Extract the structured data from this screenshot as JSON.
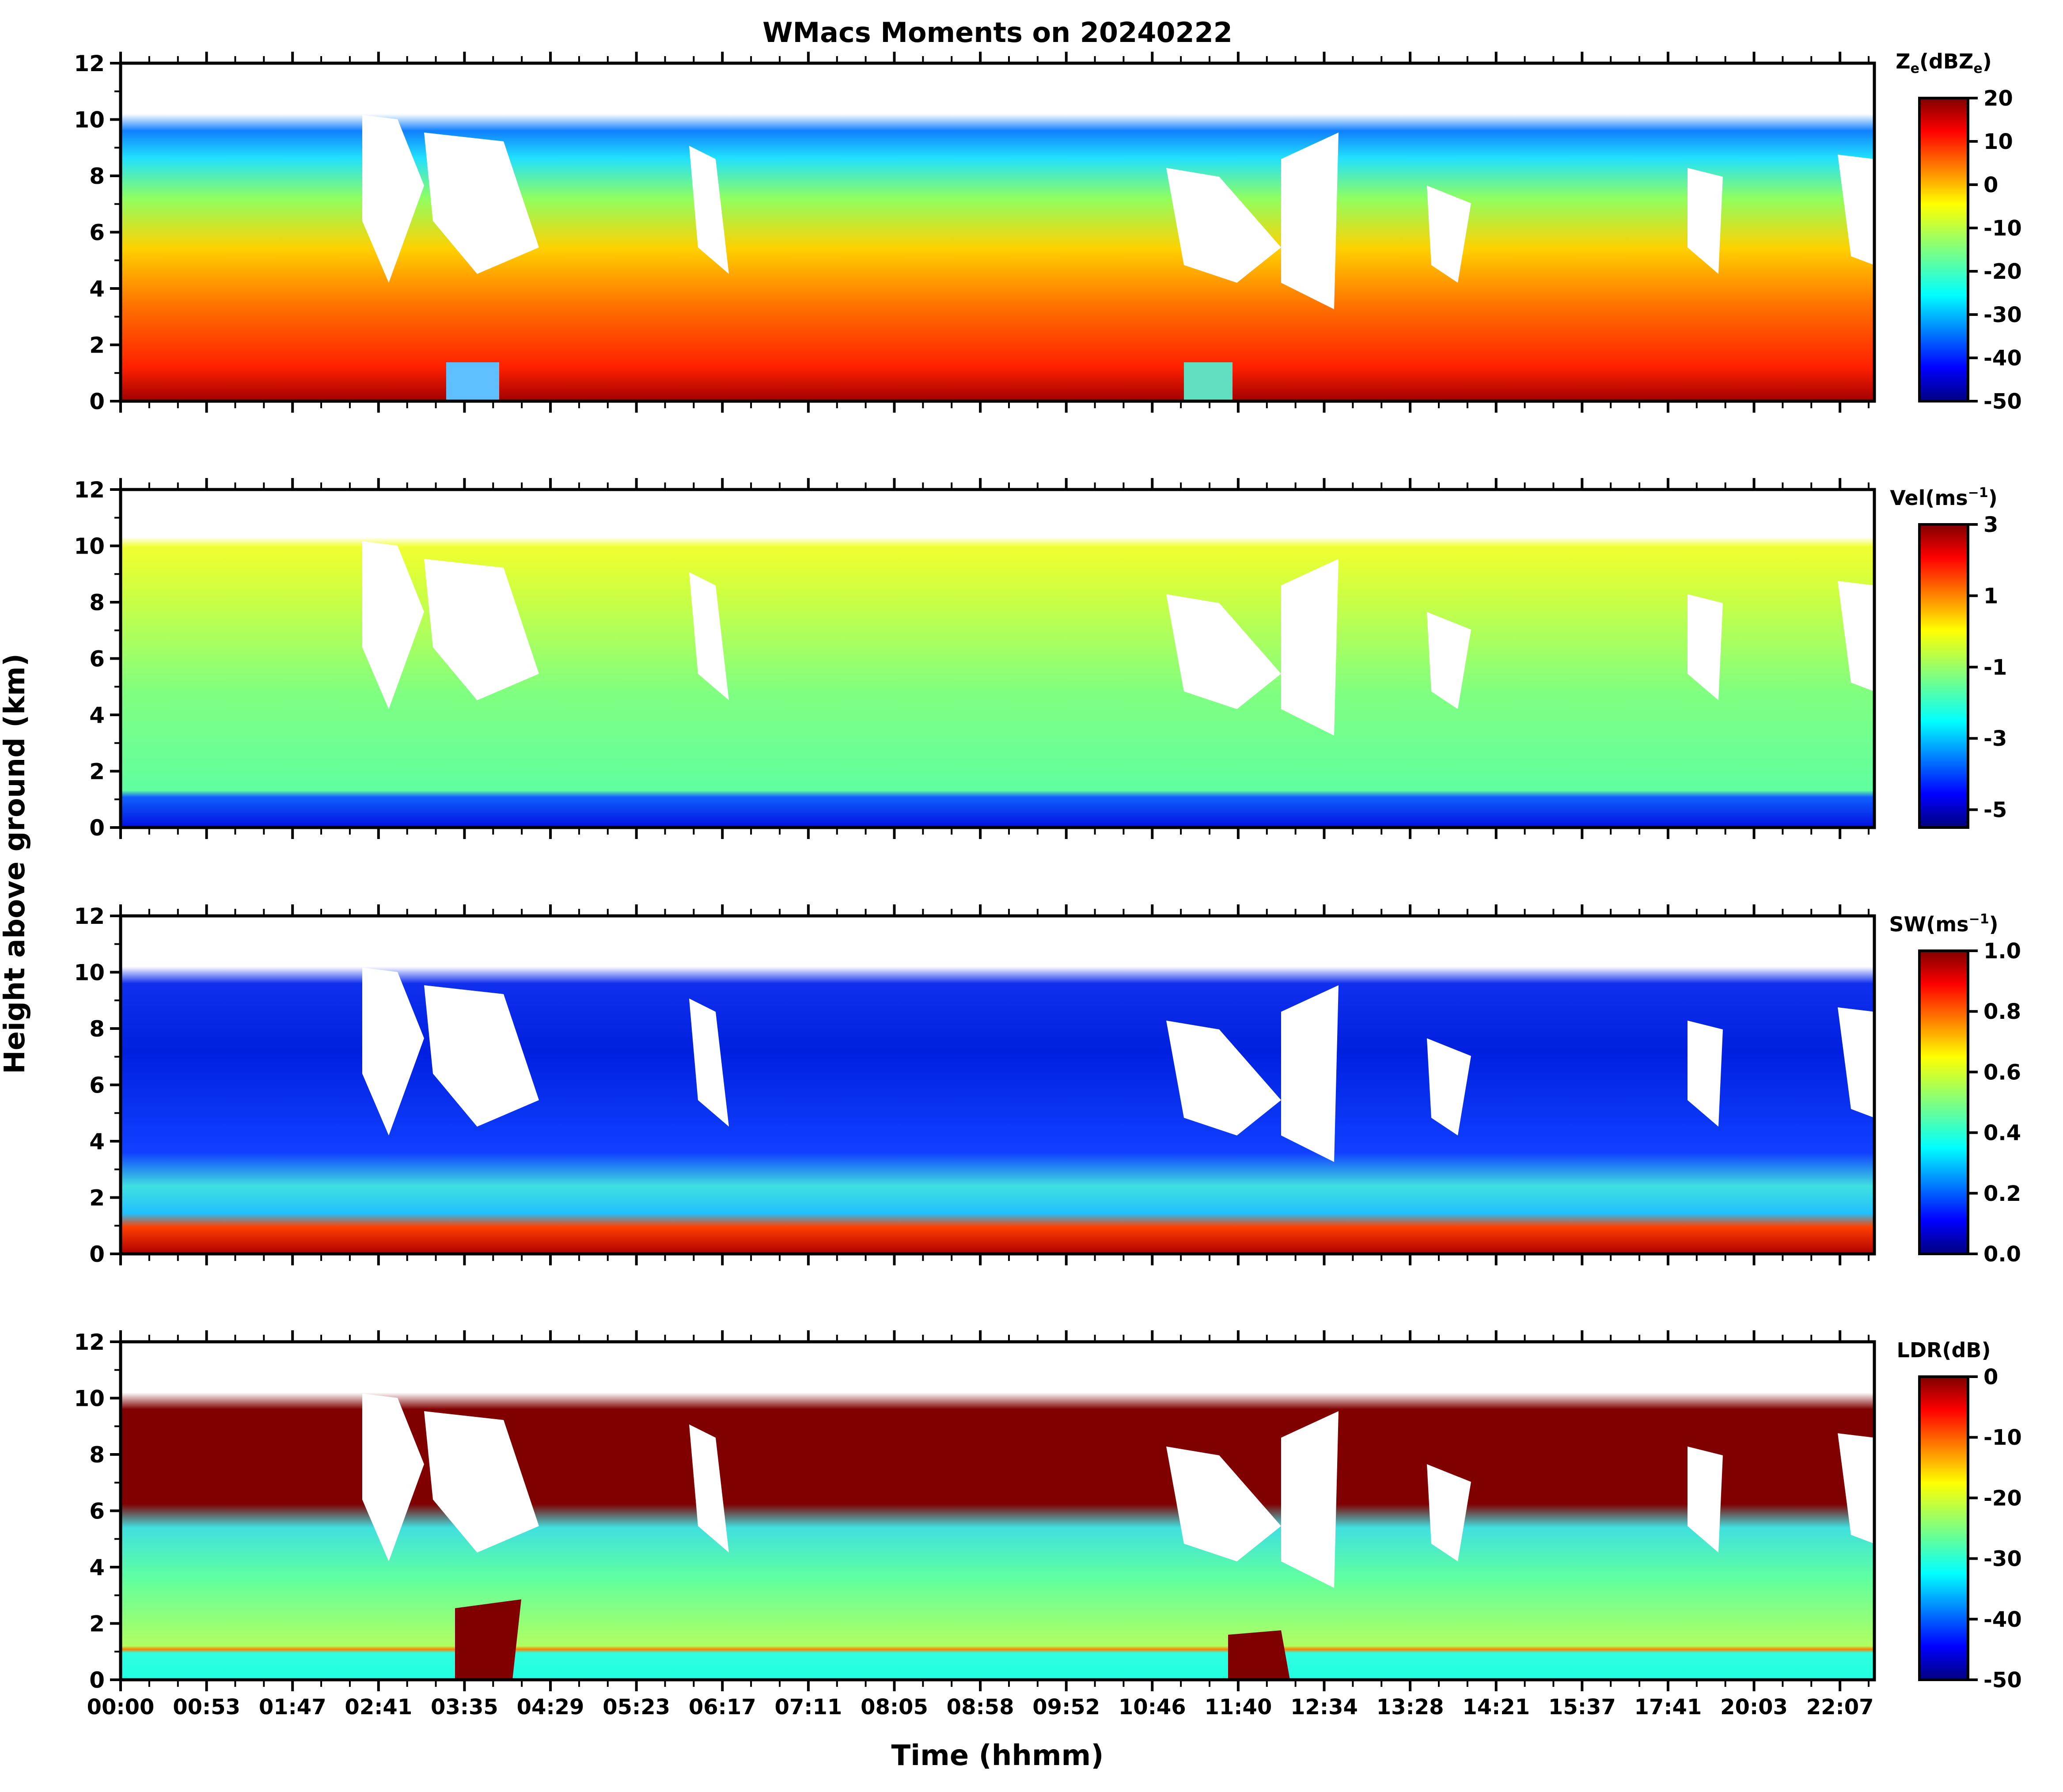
{
  "title": "WMacs Moments on 20240222",
  "xlabel": "Time (hhmm)",
  "ylabel": "Height above ground (km)",
  "chart_data": [
    {
      "type": "heatmap",
      "panel": "reflectivity",
      "colorbar": {
        "label_base": "Z",
        "label_sub": "e",
        "label_unit": "(dBZ",
        "label_unit_sub": "e",
        "label_close": ")",
        "ticks": [
          "20",
          "10",
          "0",
          "-10",
          "-20",
          "-30",
          "-40",
          "-50"
        ],
        "range": [
          -50,
          20
        ],
        "colormap": "jet"
      },
      "ylim": [
        0,
        12
      ],
      "yticks": [
        "0",
        "2",
        "4",
        "6",
        "8",
        "10",
        "12"
      ]
    },
    {
      "type": "heatmap",
      "panel": "velocity",
      "colorbar": {
        "label": "Vel(ms",
        "label_sup": "−1",
        "label_close": ")",
        "ticks": [
          "3",
          "1",
          "-1",
          "-3",
          "-5"
        ],
        "range": [
          -5.5,
          3
        ],
        "colormap": "jet"
      },
      "ylim": [
        0,
        12
      ],
      "yticks": [
        "0",
        "2",
        "4",
        "6",
        "8",
        "10",
        "12"
      ]
    },
    {
      "type": "heatmap",
      "panel": "spectrum_width",
      "colorbar": {
        "label": "SW(ms",
        "label_sup": "−1",
        "label_close": ")",
        "ticks": [
          "1.0",
          "0.8",
          "0.6",
          "0.4",
          "0.2",
          "0.0"
        ],
        "range": [
          0,
          1
        ],
        "colormap": "jet"
      },
      "ylim": [
        0,
        12
      ],
      "yticks": [
        "0",
        "2",
        "4",
        "6",
        "8",
        "10",
        "12"
      ]
    },
    {
      "type": "heatmap",
      "panel": "ldr",
      "colorbar": {
        "label": "LDR(dB)",
        "ticks": [
          "0",
          "-10",
          "-20",
          "-30",
          "-40",
          "-50"
        ],
        "range": [
          -50,
          0
        ],
        "colormap": "jet"
      },
      "ylim": [
        0,
        12
      ],
      "yticks": [
        "0",
        "2",
        "4",
        "6",
        "8",
        "10",
        "12"
      ]
    }
  ],
  "xticks": [
    "00:00",
    "00:53",
    "01:47",
    "02:41",
    "03:35",
    "04:29",
    "05:23",
    "06:17",
    "07:11",
    "08:05",
    "08:58",
    "09:52",
    "10:46",
    "11:40",
    "12:34",
    "13:28",
    "14:21",
    "15:37",
    "17:41",
    "20:03",
    "22:07"
  ],
  "colors": {
    "jet": [
      "#00007f",
      "#0000ff",
      "#007fff",
      "#00ffff",
      "#7fff7f",
      "#ffff00",
      "#ff7f00",
      "#ff0000",
      "#7f0000"
    ]
  }
}
